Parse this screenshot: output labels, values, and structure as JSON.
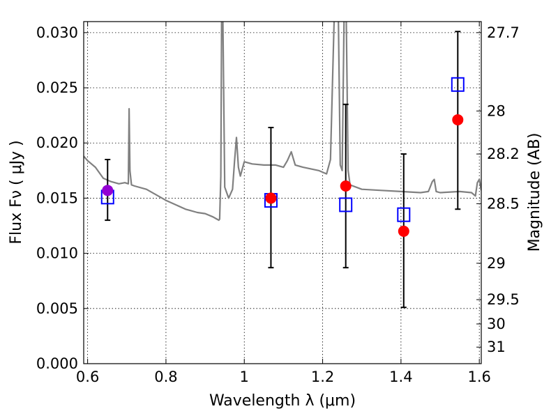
{
  "chart_data": {
    "type": "scatter",
    "title": "",
    "xlabel": "Wavelength  λ (μm)",
    "ylabel": "Flux  Fν ( μJy )",
    "y2label": "Magnitude (AB)",
    "xlim": [
      0.59,
      1.605
    ],
    "ylim": [
      0.0,
      0.031
    ],
    "grid": true,
    "x_ticks": [
      0.6,
      0.8,
      1.0,
      1.2,
      1.4,
      1.6
    ],
    "x_tick_labels": [
      "0.6",
      "0.8",
      "1",
      "1.2",
      "1.4",
      "1.6"
    ],
    "y_ticks": [
      0.0,
      0.005,
      0.01,
      0.015,
      0.02,
      0.025,
      0.03
    ],
    "y_tick_labels": [
      "0.000",
      "0.005",
      "0.010",
      "0.015",
      "0.020",
      "0.025",
      "0.030"
    ],
    "y2_ticks": [
      {
        "flux": 0.03,
        "label": "27.7"
      },
      {
        "flux": 0.0229,
        "label": "28"
      },
      {
        "flux": 0.019,
        "label": "28.2"
      },
      {
        "flux": 0.0145,
        "label": "28.5"
      },
      {
        "flux": 0.0091,
        "label": "29"
      },
      {
        "flux": 0.0058,
        "label": "29.5"
      },
      {
        "flux": 0.0036,
        "label": "30"
      },
      {
        "flux": 0.0015,
        "label": "31"
      }
    ],
    "model_spectrum": {
      "color": "#808080",
      "x": [
        0.59,
        0.6,
        0.62,
        0.64,
        0.66,
        0.68,
        0.695,
        0.704,
        0.706,
        0.708,
        0.712,
        0.72,
        0.75,
        0.8,
        0.85,
        0.86,
        0.88,
        0.9,
        0.92,
        0.93,
        0.935,
        0.937,
        0.94,
        0.942,
        0.945,
        0.95,
        0.96,
        0.97,
        0.975,
        0.98,
        0.985,
        0.99,
        1.0,
        1.02,
        1.05,
        1.08,
        1.1,
        1.11,
        1.12,
        1.13,
        1.15,
        1.19,
        1.21,
        1.22,
        1.23,
        1.24,
        1.245,
        1.25,
        1.255,
        1.26,
        1.265,
        1.27,
        1.3,
        1.35,
        1.4,
        1.45,
        1.47,
        1.48,
        1.485,
        1.49,
        1.5,
        1.55,
        1.58,
        1.59,
        1.595,
        1.6,
        1.605
      ],
      "y": [
        0.0188,
        0.0184,
        0.0178,
        0.0168,
        0.0165,
        0.0163,
        0.0164,
        0.0163,
        0.0231,
        0.0175,
        0.0162,
        0.0161,
        0.0158,
        0.0148,
        0.014,
        0.0139,
        0.0137,
        0.0136,
        0.0133,
        0.0131,
        0.013,
        0.0131,
        0.017,
        0.031,
        0.032,
        0.016,
        0.015,
        0.0158,
        0.0183,
        0.0205,
        0.0178,
        0.017,
        0.0183,
        0.0181,
        0.018,
        0.018,
        0.0178,
        0.0184,
        0.0192,
        0.018,
        0.0178,
        0.0175,
        0.0172,
        0.0185,
        0.032,
        0.032,
        0.018,
        0.0175,
        0.032,
        0.032,
        0.0175,
        0.0162,
        0.0158,
        0.0157,
        0.0156,
        0.0155,
        0.0156,
        0.0165,
        0.0167,
        0.0156,
        0.0155,
        0.0156,
        0.0155,
        0.0152,
        0.0164,
        0.0167,
        0.0157
      ]
    },
    "series": [
      {
        "marker": "open-square",
        "color": "#0000ff",
        "x": [
          0.651,
          1.068,
          1.259,
          1.407,
          1.545
        ],
        "y": [
          0.0151,
          0.0148,
          0.0144,
          0.0135,
          0.0253
        ]
      },
      {
        "marker": "filled-circle",
        "color": "#ff0000",
        "x": [
          1.068,
          1.259,
          1.407,
          1.545
        ],
        "y": [
          0.015,
          0.0161,
          0.012,
          0.0221
        ]
      },
      {
        "marker": "filled-circle",
        "color": "#9400d3",
        "x": [
          0.651
        ],
        "y": [
          0.0157
        ]
      }
    ],
    "error_bars": {
      "color": "#000000",
      "x": [
        0.651,
        1.068,
        1.259,
        1.407,
        1.545
      ],
      "y_low": [
        0.013,
        0.0087,
        0.0087,
        0.0051,
        0.014
      ],
      "y_high": [
        0.0185,
        0.0214,
        0.0235,
        0.019,
        0.0301
      ]
    }
  }
}
